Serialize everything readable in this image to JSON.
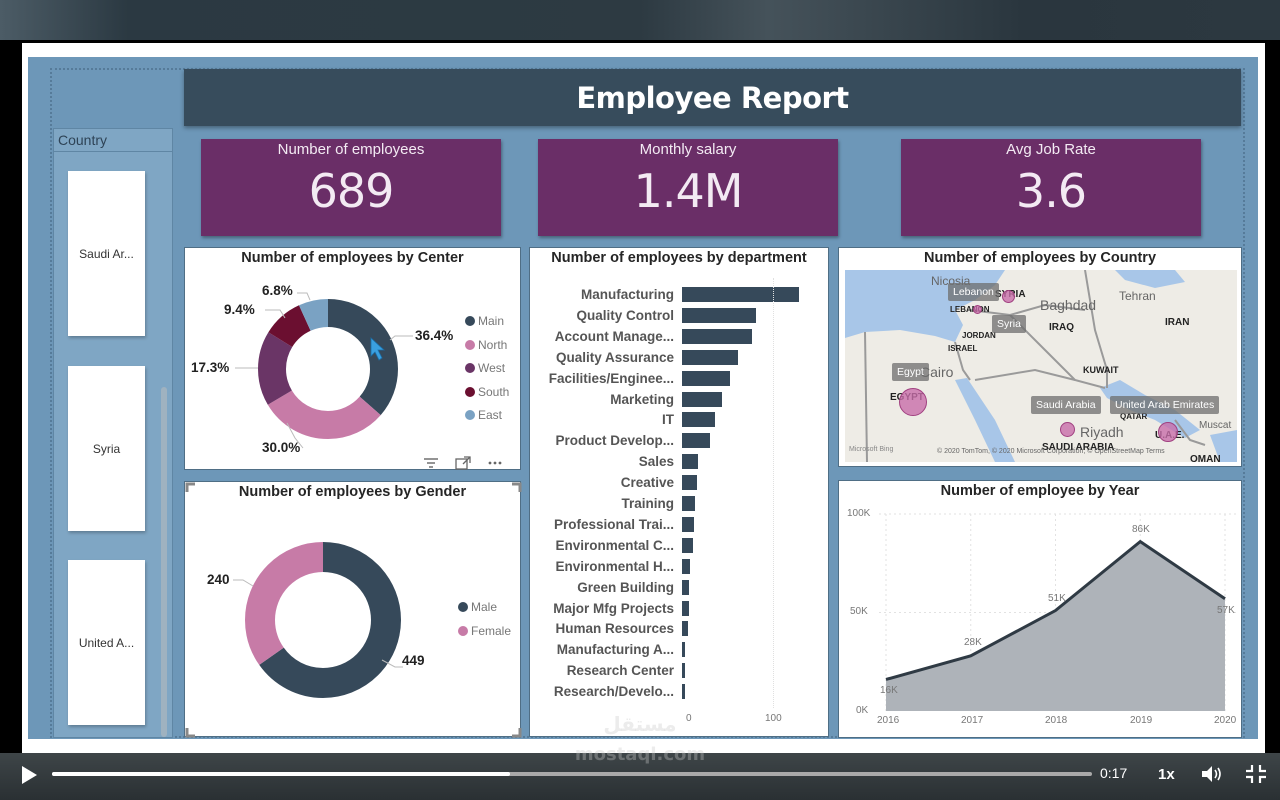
{
  "report": {
    "title": "Employee Report"
  },
  "slicer": {
    "header": "Country",
    "items": [
      {
        "label": "Saudi Ar..."
      },
      {
        "label": "Syria"
      },
      {
        "label": "United A..."
      }
    ]
  },
  "kpis": [
    {
      "label": "Number of employees",
      "value": "689"
    },
    {
      "label": "Monthly salary",
      "value": "1.4M"
    },
    {
      "label": "Avg Job Rate",
      "value": "3.6"
    }
  ],
  "center_chart": {
    "title": "Number of employees by Center",
    "legend": [
      {
        "label": "Main",
        "color": "#36495a"
      },
      {
        "label": "North",
        "color": "#c77ba7"
      },
      {
        "label": "West",
        "color": "#6a3566"
      },
      {
        "label": "South",
        "color": "#6b0f30"
      },
      {
        "label": "East",
        "color": "#7aa2c3"
      }
    ],
    "labels": {
      "main": "36.4%",
      "north": "30.0%",
      "west": "17.3%",
      "south": "9.4%",
      "east": "6.8%"
    }
  },
  "gender_chart": {
    "title": "Number of employees by Gender",
    "legend": [
      {
        "label": "Male",
        "color": "#36495a"
      },
      {
        "label": "Female",
        "color": "#c77ba7"
      }
    ],
    "labels": {
      "male": "449",
      "female": "240"
    }
  },
  "dept_chart": {
    "title": "Number of employees by department",
    "axis": {
      "tick0": "0",
      "tick100": "100"
    }
  },
  "map_chart": {
    "title": "Number of employees by Country",
    "tags": {
      "lebanon": "Lebanon",
      "syria": "Syria",
      "egypt": "Egypt",
      "saudi": "Saudi Arabia",
      "uae": "United Arab Emirates"
    },
    "countries": {
      "lebanon": "LEBANON",
      "syria": "SYRIA",
      "jordan": "JORDAN",
      "israel": "ISRAEL",
      "iraq": "IRAQ",
      "iran": "IRAN",
      "kuwait": "KUWAIT",
      "egypt": "EGYPT",
      "qatar": "QATAR",
      "saudi": "SAUDI ARABIA",
      "uae": "U.A.E.",
      "oman": "OMAN"
    },
    "cities": {
      "nicosia": "Nicosia",
      "baghdad": "Baghdad",
      "tehran": "Tehran",
      "cairo": "Cairo",
      "riyadh": "Riyadh",
      "muscat": "Muscat"
    },
    "attribution": "© 2020 TomTom, © 2020 Microsoft Corporation, © OpenStreetMap  Terms",
    "bing": "Microsoft Bing"
  },
  "year_chart": {
    "title": "Number of employee by Year",
    "y_ticks": [
      "100K",
      "50K",
      "0K"
    ],
    "x_ticks": [
      "2016",
      "2017",
      "2018",
      "2019",
      "2020"
    ],
    "point_labels": [
      "16K",
      "28K",
      "51K",
      "86K",
      "57K"
    ]
  },
  "video": {
    "time": "0:17",
    "speed": "1x",
    "progress_pct": 44,
    "watermark_top": "مستقل",
    "watermark_bottom": "mostaql.com"
  },
  "chart_data": [
    {
      "type": "pie",
      "title": "Number of employees by Center",
      "categories": [
        "Main",
        "North",
        "West",
        "South",
        "East"
      ],
      "values": [
        36.4,
        30.0,
        17.3,
        9.4,
        6.8
      ],
      "unit": "%",
      "legend_position": "right"
    },
    {
      "type": "pie",
      "title": "Number of employees by Gender",
      "categories": [
        "Male",
        "Female"
      ],
      "values": [
        449,
        240
      ],
      "legend_position": "right"
    },
    {
      "type": "bar",
      "orientation": "horizontal",
      "title": "Number of employees by department",
      "categories": [
        "Manufacturing",
        "Quality Control",
        "Account Manage...",
        "Quality Assurance",
        "Facilities/Enginee...",
        "Marketing",
        "IT",
        "Product Develop...",
        "Sales",
        "Creative",
        "Training",
        "Professional Trai...",
        "Environmental C...",
        "Environmental H...",
        "Green Building",
        "Major Mfg Projects",
        "Human Resources",
        "Manufacturing A...",
        "Research Center",
        "Research/Develo..."
      ],
      "values": [
        139,
        88,
        83,
        67,
        57,
        48,
        39,
        33,
        19,
        18,
        16,
        14,
        13,
        9,
        8,
        8,
        7,
        4,
        4,
        4
      ],
      "xlim": [
        0,
        140
      ],
      "x_ticks": [
        "0",
        "100"
      ]
    },
    {
      "type": "area",
      "title": "Number of employee by Year",
      "x": [
        "2016",
        "2017",
        "2018",
        "2019",
        "2020"
      ],
      "values": [
        16000,
        28000,
        51000,
        86000,
        57000
      ],
      "point_labels": [
        "16K",
        "28K",
        "51K",
        "86K",
        "57K"
      ],
      "ylim": [
        0,
        100000
      ],
      "y_ticks": [
        "0K",
        "50K",
        "100K"
      ],
      "grid": true
    }
  ]
}
